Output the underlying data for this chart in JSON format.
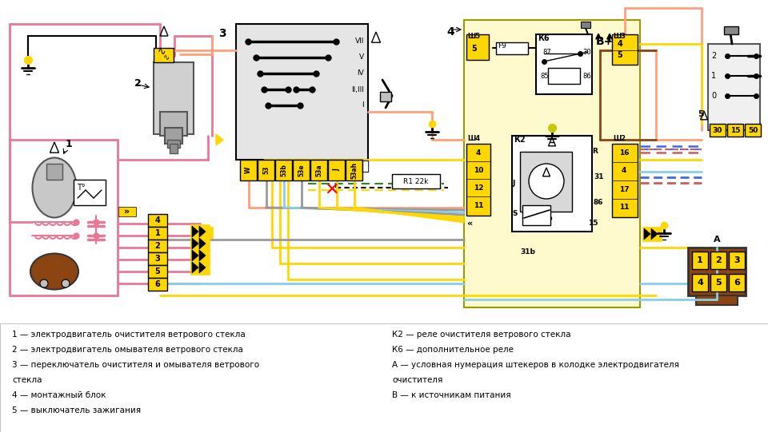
{
  "bg": "#ffffff",
  "legend_left": [
    "1 — электродвигатель очистителя ветрового стекла",
    "2 — электродвигатель омывателя ветрового стекла",
    "3 — переключатель очистителя и омывателя ветрового",
    "стекла",
    "4 — монтажный блок",
    "5 — выключатель зажигания"
  ],
  "legend_right": [
    "К2 — реле очистителя ветрового стекла",
    "К6 — дополнительное реле",
    "А — условная нумерация штекеров в колодке электродвигателя",
    "очистителя",
    "В — к источникам питания"
  ]
}
